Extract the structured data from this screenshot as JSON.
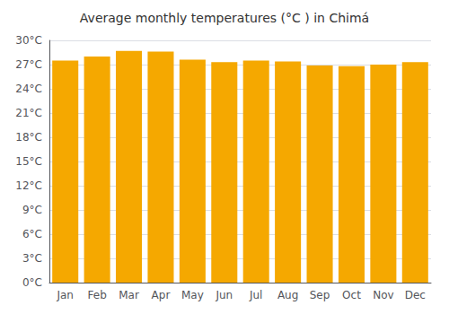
{
  "chart_data": {
    "type": "bar",
    "title": "Average monthly temperatures (°C ) in Chimá",
    "categories": [
      "Jan",
      "Feb",
      "Mar",
      "Apr",
      "May",
      "Jun",
      "Jul",
      "Aug",
      "Sep",
      "Oct",
      "Nov",
      "Dec"
    ],
    "values": [
      27.5,
      28.0,
      28.7,
      28.6,
      27.6,
      27.3,
      27.5,
      27.4,
      26.9,
      26.8,
      27.0,
      27.3
    ],
    "color": "#F5A800",
    "ylim": [
      0,
      30
    ],
    "yticks": [
      {
        "value": 0,
        "label": "0°C"
      },
      {
        "value": 3,
        "label": "3°C"
      },
      {
        "value": 6,
        "label": "6°C"
      },
      {
        "value": 9,
        "label": "9°C"
      },
      {
        "value": 12,
        "label": "12°C"
      },
      {
        "value": 15,
        "label": "15°C"
      },
      {
        "value": 18,
        "label": "18°C"
      },
      {
        "value": 21,
        "label": "21°C"
      },
      {
        "value": 24,
        "label": "24°C"
      },
      {
        "value": 27,
        "label": "27°C"
      },
      {
        "value": 30,
        "label": "30°C"
      }
    ],
    "grid": true
  }
}
